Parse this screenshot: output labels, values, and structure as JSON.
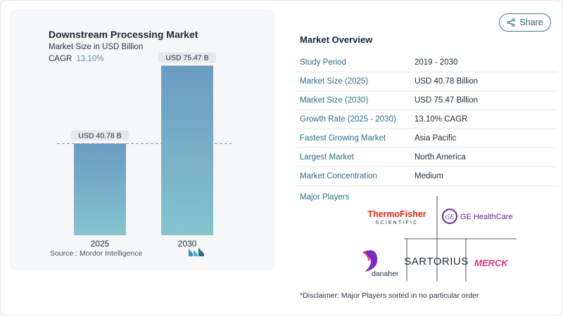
{
  "share": {
    "label": "Share",
    "icon": "share-icon"
  },
  "chart_data": {
    "type": "bar",
    "title": "Downstream Processing Market",
    "subtitle": "Market Size in USD Billion",
    "cagr_label": "CAGR",
    "cagr_value": "13.10%",
    "categories": [
      "2025",
      "2030"
    ],
    "values": [
      40.78,
      75.47
    ],
    "data_labels": [
      "USD 40.78 B",
      "USD 75.47 B"
    ],
    "ylim": [
      0,
      80
    ],
    "reference_line": 40.78,
    "colors": {
      "bar_top": "#6a9cc2",
      "bar_bottom": "#86c3cf",
      "dashed": "#6f9fc4"
    },
    "source": "Source :  Mordor Intelligence"
  },
  "overview": {
    "title": "Market Overview",
    "rows": [
      {
        "key": "Study Period",
        "value": "2019 - 2030"
      },
      {
        "key": "Market Size (2025)",
        "value": "USD 40.78 Billion"
      },
      {
        "key": "Market Size (2030)",
        "value": "USD 75.47 Billion"
      },
      {
        "key": "Growth Rate (2025 - 2030)",
        "value": "13.10% CAGR"
      },
      {
        "key": "Fastest Growing Market",
        "value": "Asia Pacific"
      },
      {
        "key": "Largest Market",
        "value": "North America"
      },
      {
        "key": "Market Concentration",
        "value": "Medium"
      }
    ]
  },
  "players": {
    "label": "Major Players",
    "logos": [
      {
        "name": "thermo-fisher",
        "line1": "ThermoFisher",
        "line2": "SCIENTIFIC"
      },
      {
        "name": "ge-healthcare",
        "text": "GE HealthCare"
      },
      {
        "name": "danaher",
        "text": "danaher"
      },
      {
        "name": "sartorius",
        "text": "SARTORIUS"
      },
      {
        "name": "merck",
        "text": "MERCK"
      }
    ],
    "disclaimer": "*Disclaimer: Major Players sorted in no particular order"
  }
}
